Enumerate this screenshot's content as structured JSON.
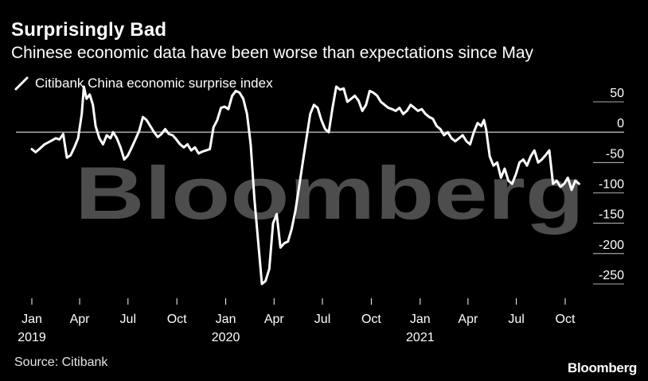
{
  "header": {
    "title": "Surprisingly Bad",
    "subtitle": "Chinese economic data have been worse than expectations since May"
  },
  "legend": {
    "label": "Citibank China economic surprise index"
  },
  "footer": {
    "source": "Source: Citibank",
    "brand": "Bloomberg"
  },
  "watermark": {
    "text": "Bloomberg"
  },
  "colors": {
    "background": "#000000",
    "line": "#ffffff",
    "grid": "#ffffff",
    "watermark": "#4d4d4d"
  },
  "chart_data": {
    "type": "line",
    "title": "Surprisingly Bad",
    "subtitle": "Chinese economic data have been worse than expectations since May",
    "xlabel": "",
    "ylabel": "",
    "ylim": [
      -280,
      80
    ],
    "yticks": [
      50,
      0,
      -50,
      -100,
      -150,
      -200,
      -250
    ],
    "reference_line": 0,
    "legend_position": "top-left",
    "x_start": "2019-01-01",
    "x_end": "2021-11-30",
    "xticks": [
      {
        "date": "2019-01-01",
        "label": "Jan",
        "year": "2019"
      },
      {
        "date": "2019-04-01",
        "label": "Apr",
        "year": ""
      },
      {
        "date": "2019-07-01",
        "label": "Jul",
        "year": ""
      },
      {
        "date": "2019-10-01",
        "label": "Oct",
        "year": ""
      },
      {
        "date": "2020-01-01",
        "label": "Jan",
        "year": "2020"
      },
      {
        "date": "2020-04-01",
        "label": "Apr",
        "year": ""
      },
      {
        "date": "2020-07-01",
        "label": "Jul",
        "year": ""
      },
      {
        "date": "2020-10-01",
        "label": "Oct",
        "year": ""
      },
      {
        "date": "2021-01-01",
        "label": "Jan",
        "year": "2021"
      },
      {
        "date": "2021-04-01",
        "label": "Apr",
        "year": ""
      },
      {
        "date": "2021-07-01",
        "label": "Jul",
        "year": ""
      },
      {
        "date": "2021-10-01",
        "label": "Oct",
        "year": ""
      }
    ],
    "series": [
      {
        "name": "Citibank China economic surprise index",
        "points": [
          [
            "2019-01-01",
            -28
          ],
          [
            "2019-01-08",
            -33
          ],
          [
            "2019-01-15",
            -28
          ],
          [
            "2019-01-25",
            -20
          ],
          [
            "2019-02-05",
            -15
          ],
          [
            "2019-02-15",
            -10
          ],
          [
            "2019-02-22",
            -12
          ],
          [
            "2019-03-01",
            -3
          ],
          [
            "2019-03-08",
            -42
          ],
          [
            "2019-03-15",
            -38
          ],
          [
            "2019-03-22",
            -25
          ],
          [
            "2019-03-29",
            -10
          ],
          [
            "2019-04-05",
            30
          ],
          [
            "2019-04-09",
            75
          ],
          [
            "2019-04-14",
            55
          ],
          [
            "2019-04-20",
            62
          ],
          [
            "2019-04-26",
            45
          ],
          [
            "2019-05-01",
            10
          ],
          [
            "2019-05-08",
            -10
          ],
          [
            "2019-05-15",
            -20
          ],
          [
            "2019-05-22",
            -5
          ],
          [
            "2019-05-29",
            -10
          ],
          [
            "2019-06-03",
            0
          ],
          [
            "2019-06-10",
            -10
          ],
          [
            "2019-06-17",
            -25
          ],
          [
            "2019-06-24",
            -45
          ],
          [
            "2019-07-01",
            -38
          ],
          [
            "2019-07-08",
            -25
          ],
          [
            "2019-07-15",
            -12
          ],
          [
            "2019-07-22",
            2
          ],
          [
            "2019-07-29",
            25
          ],
          [
            "2019-08-05",
            20
          ],
          [
            "2019-08-12",
            10
          ],
          [
            "2019-08-19",
            0
          ],
          [
            "2019-08-26",
            -8
          ],
          [
            "2019-09-02",
            -3
          ],
          [
            "2019-09-09",
            5
          ],
          [
            "2019-09-16",
            -3
          ],
          [
            "2019-09-23",
            -5
          ],
          [
            "2019-09-30",
            -12
          ],
          [
            "2019-10-07",
            -20
          ],
          [
            "2019-10-14",
            -25
          ],
          [
            "2019-10-21",
            -20
          ],
          [
            "2019-10-28",
            -30
          ],
          [
            "2019-11-04",
            -25
          ],
          [
            "2019-11-11",
            -35
          ],
          [
            "2019-11-18",
            -32
          ],
          [
            "2019-11-25",
            -30
          ],
          [
            "2019-12-02",
            -28
          ],
          [
            "2019-12-09",
            8
          ],
          [
            "2019-12-16",
            20
          ],
          [
            "2019-12-23",
            40
          ],
          [
            "2019-12-30",
            42
          ],
          [
            "2020-01-06",
            38
          ],
          [
            "2020-01-13",
            60
          ],
          [
            "2020-01-20",
            68
          ],
          [
            "2020-01-27",
            65
          ],
          [
            "2020-02-03",
            55
          ],
          [
            "2020-02-10",
            30
          ],
          [
            "2020-02-17",
            -20
          ],
          [
            "2020-02-24",
            -110
          ],
          [
            "2020-03-02",
            -180
          ],
          [
            "2020-03-09",
            -250
          ],
          [
            "2020-03-16",
            -245
          ],
          [
            "2020-03-23",
            -225
          ],
          [
            "2020-03-30",
            -150
          ],
          [
            "2020-04-06",
            -135
          ],
          [
            "2020-04-13",
            -190
          ],
          [
            "2020-04-20",
            -183
          ],
          [
            "2020-04-27",
            -180
          ],
          [
            "2020-05-04",
            -160
          ],
          [
            "2020-05-11",
            -130
          ],
          [
            "2020-05-18",
            -90
          ],
          [
            "2020-05-25",
            -50
          ],
          [
            "2020-06-01",
            -10
          ],
          [
            "2020-06-08",
            30
          ],
          [
            "2020-06-15",
            45
          ],
          [
            "2020-06-22",
            40
          ],
          [
            "2020-06-29",
            20
          ],
          [
            "2020-07-06",
            5
          ],
          [
            "2020-07-13",
            0
          ],
          [
            "2020-07-20",
            40
          ],
          [
            "2020-07-27",
            75
          ],
          [
            "2020-08-03",
            70
          ],
          [
            "2020-08-10",
            72
          ],
          [
            "2020-08-17",
            50
          ],
          [
            "2020-08-24",
            55
          ],
          [
            "2020-08-31",
            60
          ],
          [
            "2020-09-07",
            52
          ],
          [
            "2020-09-14",
            35
          ],
          [
            "2020-09-21",
            45
          ],
          [
            "2020-09-28",
            68
          ],
          [
            "2020-10-05",
            65
          ],
          [
            "2020-10-12",
            60
          ],
          [
            "2020-10-19",
            50
          ],
          [
            "2020-10-26",
            45
          ],
          [
            "2020-11-02",
            40
          ],
          [
            "2020-11-09",
            38
          ],
          [
            "2020-11-16",
            35
          ],
          [
            "2020-11-23",
            40
          ],
          [
            "2020-11-30",
            30
          ],
          [
            "2020-12-07",
            35
          ],
          [
            "2020-12-14",
            45
          ],
          [
            "2020-12-21",
            40
          ],
          [
            "2020-12-28",
            35
          ],
          [
            "2021-01-04",
            38
          ],
          [
            "2021-01-11",
            30
          ],
          [
            "2021-01-18",
            25
          ],
          [
            "2021-01-25",
            22
          ],
          [
            "2021-02-01",
            10
          ],
          [
            "2021-02-08",
            5
          ],
          [
            "2021-02-15",
            -5
          ],
          [
            "2021-02-22",
            0
          ],
          [
            "2021-03-01",
            -10
          ],
          [
            "2021-03-08",
            -15
          ],
          [
            "2021-03-15",
            -10
          ],
          [
            "2021-03-22",
            -5
          ],
          [
            "2021-03-29",
            -15
          ],
          [
            "2021-04-05",
            -20
          ],
          [
            "2021-04-12",
            0
          ],
          [
            "2021-04-19",
            15
          ],
          [
            "2021-04-26",
            10
          ],
          [
            "2021-05-01",
            20
          ],
          [
            "2021-05-05",
            5
          ],
          [
            "2021-05-12",
            -40
          ],
          [
            "2021-05-19",
            -55
          ],
          [
            "2021-05-26",
            -50
          ],
          [
            "2021-06-02",
            -75
          ],
          [
            "2021-06-09",
            -60
          ],
          [
            "2021-06-16",
            -80
          ],
          [
            "2021-06-23",
            -85
          ],
          [
            "2021-06-30",
            -70
          ],
          [
            "2021-07-07",
            -50
          ],
          [
            "2021-07-14",
            -45
          ],
          [
            "2021-07-21",
            -55
          ],
          [
            "2021-07-28",
            -40
          ],
          [
            "2021-08-04",
            -30
          ],
          [
            "2021-08-11",
            -50
          ],
          [
            "2021-08-18",
            -45
          ],
          [
            "2021-08-25",
            -38
          ],
          [
            "2021-09-01",
            -30
          ],
          [
            "2021-09-08",
            -85
          ],
          [
            "2021-09-15",
            -80
          ],
          [
            "2021-09-22",
            -90
          ],
          [
            "2021-09-29",
            -85
          ],
          [
            "2021-10-06",
            -75
          ],
          [
            "2021-10-13",
            -95
          ],
          [
            "2021-10-20",
            -80
          ],
          [
            "2021-10-27",
            -85
          ]
        ]
      }
    ]
  }
}
